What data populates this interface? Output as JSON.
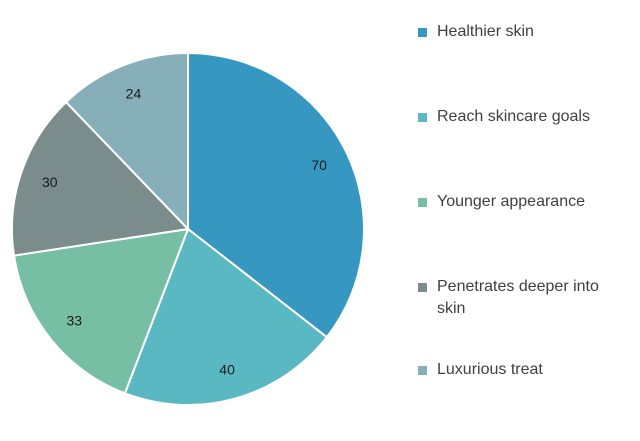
{
  "chart_data": {
    "type": "pie",
    "slices": [
      {
        "label": "Healthier skin",
        "value": 70,
        "color": "#3697c0"
      },
      {
        "label": "Reach skincare goals",
        "value": 40,
        "color": "#5ab8c2"
      },
      {
        "label": "Younger appearance",
        "value": 33,
        "color": "#76bfa4"
      },
      {
        "label": "Penetrates deeper into skin",
        "value": 30,
        "color": "#7a8c8c"
      },
      {
        "label": "Luxurious treat",
        "value": 24,
        "color": "#86afb9"
      }
    ],
    "legend_placement": "right",
    "start_angle_deg": 0,
    "direction": "clockwise"
  },
  "legend": {
    "items": [
      {
        "label": "Healthier skin",
        "color": "#3697c0"
      },
      {
        "label": "Reach skincare goals",
        "color": "#5ab8c2"
      },
      {
        "label": "Younger appearance",
        "color": "#76bfa4"
      },
      {
        "label": "Penetrates deeper into",
        "label2": "skin",
        "color": "#7a8c8c"
      },
      {
        "label": "Luxurious treat",
        "color": "#86afb9"
      }
    ]
  }
}
